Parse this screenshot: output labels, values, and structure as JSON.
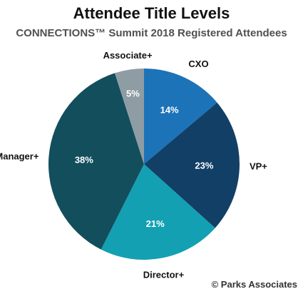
{
  "chart_data": {
    "type": "pie",
    "title": "Attendee Title Levels",
    "subtitle": "CONNECTIONS™ Summit 2018 Registered Attendees",
    "slices": [
      {
        "label": "CXO",
        "value": 14,
        "value_label": "14%",
        "color": "#1c73b8"
      },
      {
        "label": "VP+",
        "value": 23,
        "value_label": "23%",
        "color": "#123f66"
      },
      {
        "label": "Director+",
        "value": 21,
        "value_label": "21%",
        "color": "#13a0b3"
      },
      {
        "label": "Manager+",
        "value": 38,
        "value_label": "38%",
        "color": "#134e5d"
      },
      {
        "label": "Associate+",
        "value": 5,
        "value_label": "5%",
        "color": "#8e9ca3"
      }
    ],
    "start_angle": "12 o'clock",
    "direction": "clockwise"
  },
  "credit": "© Parks Associates"
}
